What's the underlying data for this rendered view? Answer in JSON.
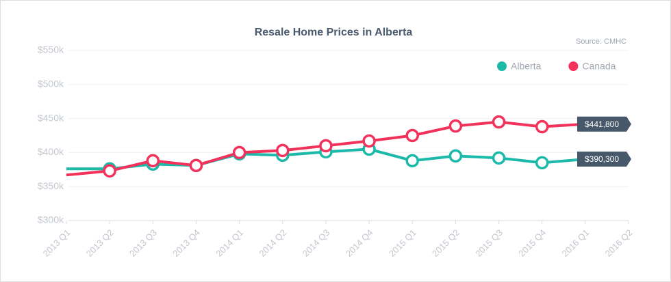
{
  "chart_data": {
    "type": "line",
    "title": "Resale Home Prices in Alberta",
    "source": "Source: CMHC",
    "categories": [
      "2013 Q1",
      "2013 Q2",
      "2013 Q3",
      "2013 Q4",
      "2014 Q1",
      "2014 Q2",
      "2014 Q3",
      "2014 Q4",
      "2015 Q1",
      "2015 Q2",
      "2015 Q3",
      "2015 Q4",
      "2016 Q1",
      "2016 Q2"
    ],
    "series": [
      {
        "name": "Alberta",
        "color": "#1cb9a9",
        "values": [
          376,
          376,
          383,
          381,
          398,
          396,
          401,
          405,
          388,
          395,
          392,
          385,
          390.3,
          null
        ],
        "value_labels": [
          null,
          null,
          null,
          null,
          null,
          null,
          null,
          null,
          null,
          null,
          null,
          null,
          "$390,300",
          null
        ]
      },
      {
        "name": "Canada",
        "color": "#f2325b",
        "values": [
          367,
          373,
          388,
          381,
          400,
          403,
          410,
          417,
          425,
          439,
          445,
          438,
          441.8,
          null
        ],
        "value_labels": [
          null,
          null,
          null,
          null,
          null,
          null,
          null,
          null,
          null,
          null,
          null,
          null,
          "$441,800",
          null
        ]
      }
    ],
    "ylim": [
      300,
      550
    ],
    "yticks": [
      {
        "value": 300,
        "label": "$300k"
      },
      {
        "value": 350,
        "label": "$350k"
      },
      {
        "value": 400,
        "label": "$400k"
      },
      {
        "value": 450,
        "label": "$450k"
      },
      {
        "value": 500,
        "label": "$500k"
      },
      {
        "value": 550,
        "label": "$550k"
      }
    ],
    "grid": true,
    "legend": "upper right"
  }
}
